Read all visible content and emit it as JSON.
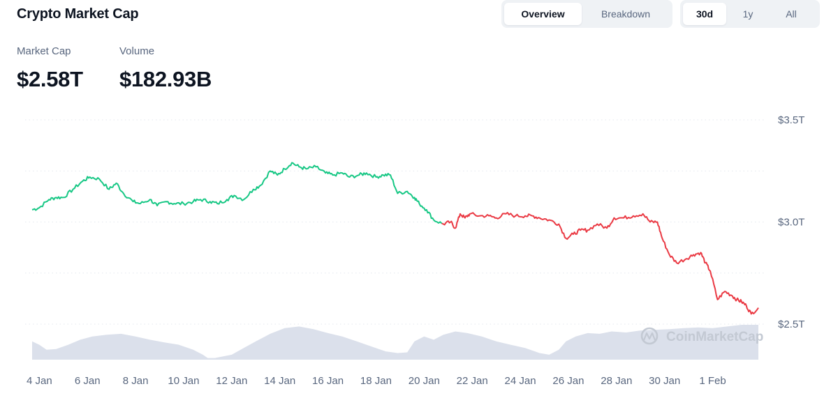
{
  "header": {
    "title": "Crypto Market Cap"
  },
  "view_tabs": [
    {
      "label": "Overview",
      "active": true
    },
    {
      "label": "Breakdown",
      "active": false
    }
  ],
  "range_tabs": [
    {
      "label": "30d",
      "active": true
    },
    {
      "label": "1y",
      "active": false
    },
    {
      "label": "All",
      "active": false
    }
  ],
  "stats": {
    "market_cap_label": "Market Cap",
    "market_cap_value": "$2.58T",
    "volume_label": "Volume",
    "volume_value": "$182.93B"
  },
  "watermark": "CoinMarketCap",
  "colors": {
    "up": "#16c784",
    "down": "#ea3943",
    "volume": "#cfd6e4",
    "grid": "#e3e7ee",
    "text": "#58667e"
  },
  "chart_data": {
    "type": "line",
    "title": "",
    "xlabel": "",
    "ylabel": "",
    "ylim": [
      2.33,
      3.52
    ],
    "y_ticks": [
      2.5,
      3.0,
      3.5
    ],
    "y_tick_labels": [
      "$2.5T",
      "$3.0T",
      "$3.5T"
    ],
    "y_axis_position": "right",
    "grid": "horizontal-dotted",
    "x_domain": [
      3.7,
      33.9
    ],
    "x_ticks": [
      4,
      6,
      8,
      10,
      12,
      14,
      16,
      18,
      20,
      22,
      24,
      26,
      28,
      30,
      32
    ],
    "x_tick_labels": [
      "4 Jan",
      "6 Jan",
      "8 Jan",
      "10 Jan",
      "12 Jan",
      "14 Jan",
      "16 Jan",
      "18 Jan",
      "20 Jan",
      "22 Jan",
      "24 Jan",
      "26 Jan",
      "28 Jan",
      "30 Jan",
      "1 Feb"
    ],
    "baseline": 3.0,
    "series": [
      {
        "values_note_x": "day of month (Jan; 32 = 1 Feb)",
        "x": [
          3.7,
          4.0,
          4.4,
          4.7,
          5.0,
          5.4,
          5.8,
          6.1,
          6.5,
          6.9,
          7.2,
          7.5,
          7.9,
          8.2,
          8.6,
          8.9,
          9.3,
          9.6,
          10.0,
          10.4,
          10.7,
          11.1,
          11.4,
          11.8,
          12.1,
          12.5,
          12.9,
          13.2,
          13.6,
          13.9,
          14.2,
          14.5,
          14.8,
          15.1,
          15.5,
          15.9,
          16.2,
          16.6,
          16.9,
          17.3,
          17.6,
          18.0,
          18.3,
          18.6,
          18.9,
          19.3,
          19.6,
          19.8,
          20.1,
          20.4,
          20.8,
          21.1,
          21.3,
          21.5,
          21.7,
          21.9,
          22.3,
          22.7,
          23.0,
          23.4,
          23.8,
          24.2,
          24.5,
          24.8,
          25.2,
          25.6,
          25.9,
          26.2,
          26.5,
          26.8,
          27.2,
          27.6,
          27.9,
          28.3,
          28.7,
          29.1,
          29.4,
          29.7,
          29.9,
          30.2,
          30.5,
          30.9,
          31.2,
          31.5,
          31.7,
          31.9,
          32.2,
          32.5,
          32.8,
          33.0,
          33.2,
          33.4,
          33.6,
          33.9
        ],
        "values": [
          3.06,
          3.07,
          3.11,
          3.12,
          3.12,
          3.16,
          3.2,
          3.22,
          3.21,
          3.16,
          3.19,
          3.14,
          3.1,
          3.09,
          3.11,
          3.08,
          3.1,
          3.09,
          3.09,
          3.1,
          3.11,
          3.1,
          3.09,
          3.11,
          3.13,
          3.11,
          3.16,
          3.18,
          3.25,
          3.23,
          3.26,
          3.29,
          3.27,
          3.26,
          3.27,
          3.24,
          3.23,
          3.24,
          3.22,
          3.23,
          3.24,
          3.22,
          3.23,
          3.23,
          3.14,
          3.15,
          3.12,
          3.09,
          3.06,
          3.01,
          2.99,
          3.0,
          2.97,
          3.04,
          3.02,
          3.04,
          3.03,
          3.03,
          3.02,
          3.04,
          3.03,
          3.03,
          3.03,
          3.02,
          3.01,
          2.99,
          2.92,
          2.94,
          2.96,
          2.96,
          2.99,
          2.97,
          3.02,
          3.02,
          3.03,
          3.04,
          3.0,
          3.0,
          2.92,
          2.84,
          2.8,
          2.82,
          2.84,
          2.85,
          2.8,
          2.76,
          2.62,
          2.66,
          2.64,
          2.62,
          2.61,
          2.59,
          2.55,
          2.58
        ]
      }
    ],
    "volume": {
      "x": [
        3.7,
        4.0,
        4.3,
        4.7,
        5.2,
        5.7,
        6.2,
        6.8,
        7.4,
        8.0,
        8.6,
        9.2,
        9.8,
        10.4,
        10.8,
        11.0,
        11.3,
        12.0,
        12.5,
        13.0,
        13.6,
        14.2,
        14.8,
        15.4,
        16.0,
        16.6,
        17.2,
        17.8,
        18.4,
        18.9,
        19.3,
        19.6,
        20.0,
        20.4,
        20.8,
        21.3,
        21.8,
        22.4,
        23.0,
        23.6,
        24.2,
        24.8,
        25.2,
        25.6,
        25.9,
        26.3,
        26.8,
        27.3,
        27.8,
        28.4,
        29.0,
        29.6,
        30.2,
        30.8,
        31.4,
        32.0,
        32.6,
        33.2,
        33.9
      ],
      "relative": [
        0.55,
        0.45,
        0.3,
        0.32,
        0.45,
        0.6,
        0.7,
        0.75,
        0.78,
        0.7,
        0.6,
        0.52,
        0.45,
        0.3,
        0.15,
        0.05,
        0.05,
        0.15,
        0.35,
        0.55,
        0.78,
        0.95,
        1.0,
        0.92,
        0.8,
        0.7,
        0.55,
        0.4,
        0.25,
        0.2,
        0.22,
        0.55,
        0.7,
        0.6,
        0.75,
        0.85,
        0.8,
        0.7,
        0.55,
        0.45,
        0.35,
        0.2,
        0.15,
        0.3,
        0.55,
        0.7,
        0.8,
        0.78,
        0.85,
        0.82,
        0.88,
        0.9,
        0.92,
        0.95,
        0.97,
        0.95,
        1.0,
        1.05,
        1.05
      ]
    }
  }
}
